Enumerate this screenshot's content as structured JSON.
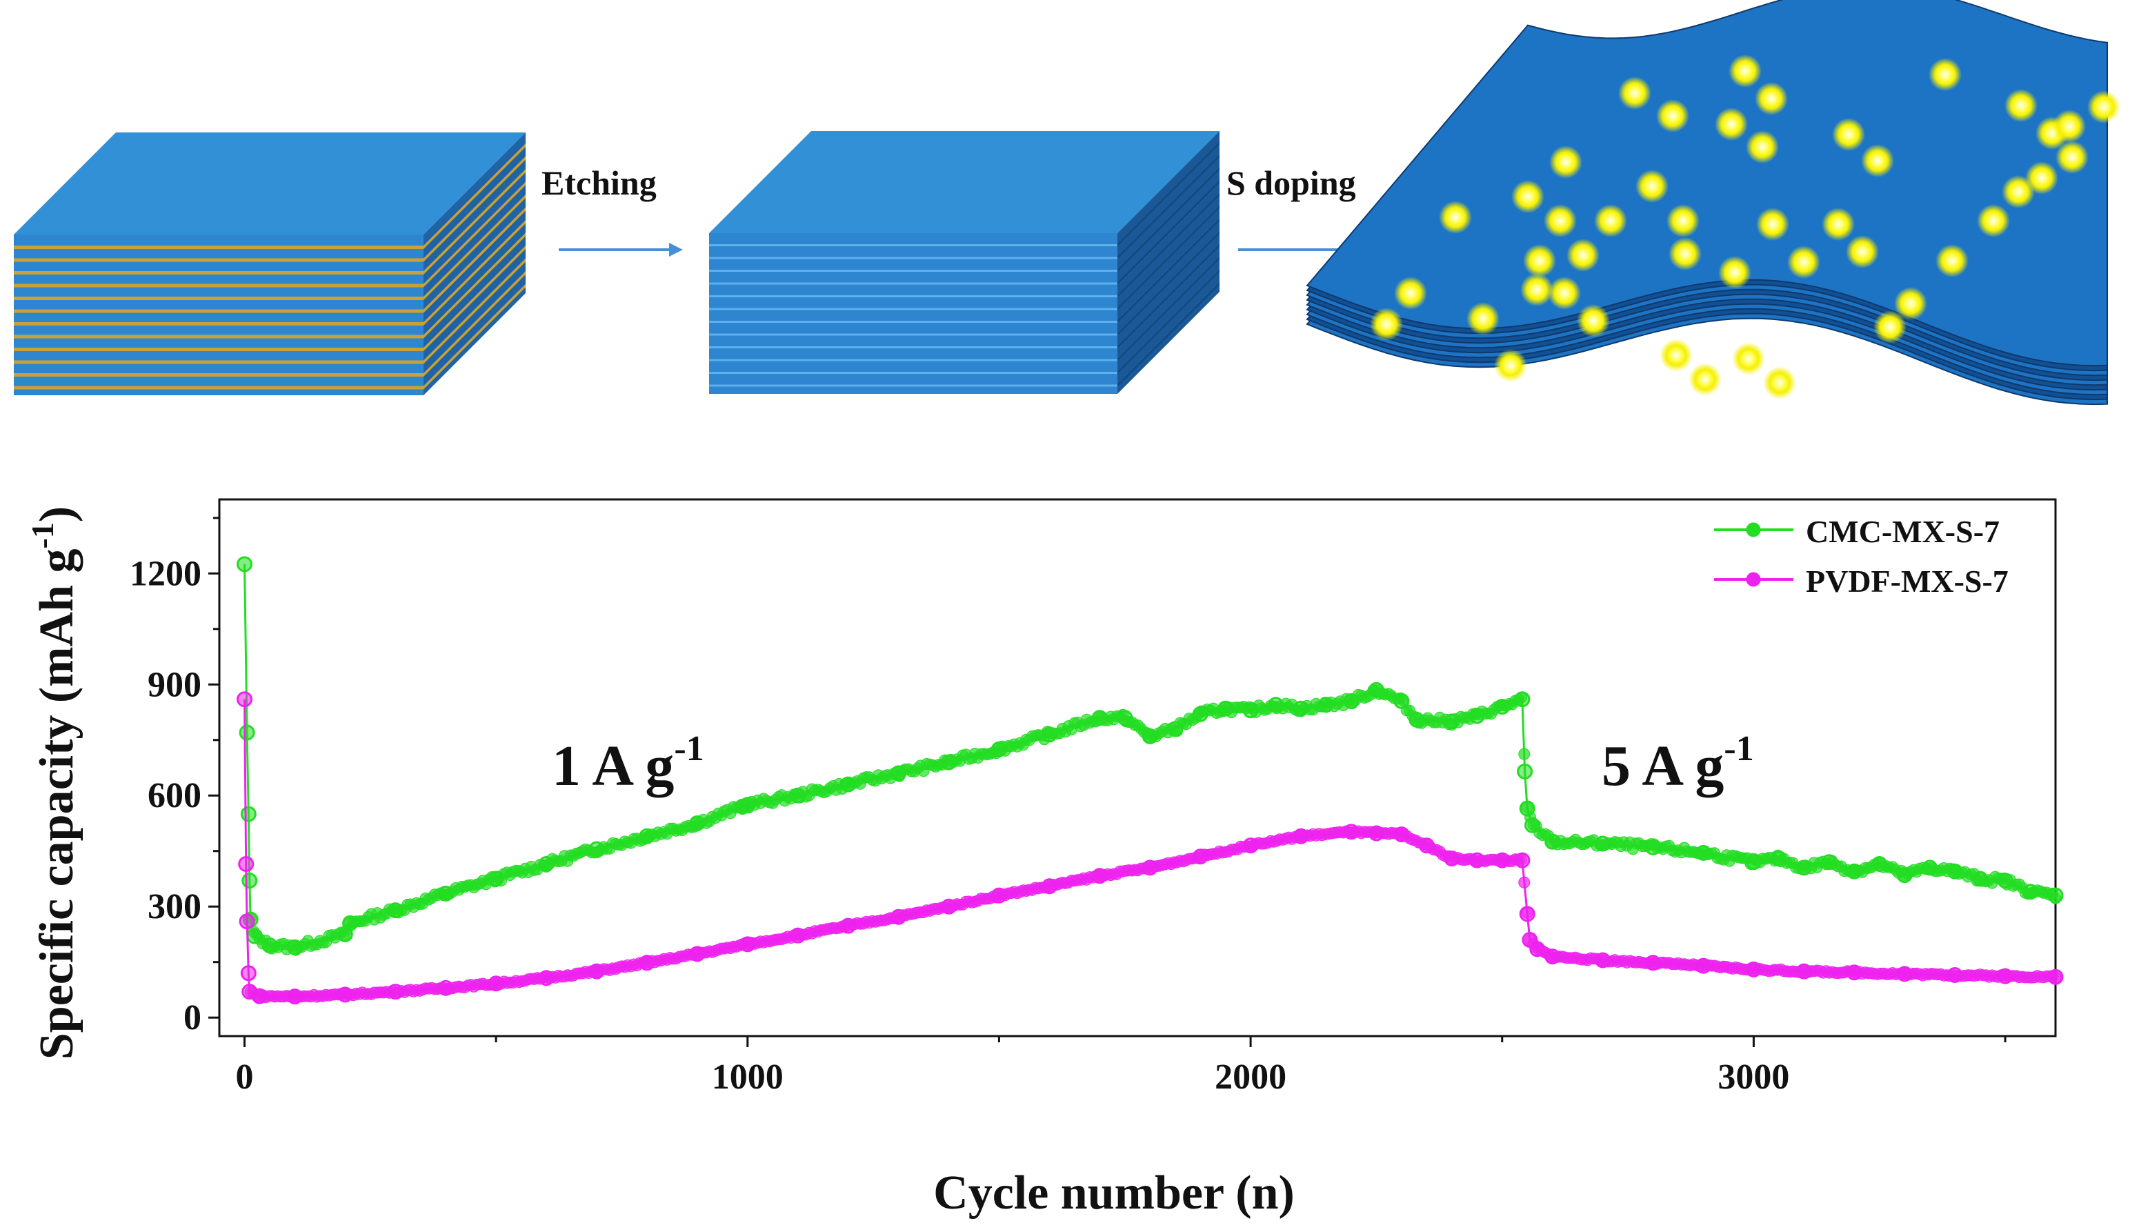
{
  "schematic": {
    "step1_label": "Etching",
    "step2_label": "S doping",
    "colors": {
      "layer_blue": "#2e86d0",
      "layer_blue_top": "#3291d6",
      "layer_blue_dark": "#1f63a6",
      "interlayer_gold": "#c9a135",
      "arrow_blue": "#4a8fd6",
      "dot_yellow": "#ffff33",
      "wave_blue": "#1e74c4"
    }
  },
  "chart_data": {
    "type": "scatter",
    "title": "",
    "xlabel": "Cycle number (n)",
    "ylabel": "Specific capacity (mAh g",
    "ylabel_sup": "-1",
    "ylabel_close": ")",
    "xlim": [
      -50,
      3600
    ],
    "ylim": [
      -50,
      1400
    ],
    "xticks": [
      0,
      1000,
      2000,
      3000
    ],
    "xtick_labels": [
      "0",
      "1000",
      "2000",
      "3000"
    ],
    "yticks": [
      0,
      300,
      600,
      900,
      1200
    ],
    "ytick_labels": [
      "0",
      "300",
      "600",
      "900",
      "1200"
    ],
    "legend_position": "top-right",
    "annotations": [
      {
        "text": "1 A g",
        "sup": "-1",
        "x": 600,
        "y": 720
      },
      {
        "text": "5 A g",
        "sup": "-1",
        "x": 2920,
        "y": 720
      }
    ],
    "series": [
      {
        "name": "CMC-MX-S-7",
        "color": "#22dd22",
        "points": [
          [
            0,
            1225
          ],
          [
            5,
            770
          ],
          [
            8,
            550
          ],
          [
            10,
            370
          ],
          [
            12,
            265
          ],
          [
            20,
            220
          ],
          [
            50,
            195
          ],
          [
            100,
            190
          ],
          [
            200,
            225
          ],
          [
            210,
            255
          ],
          [
            300,
            290
          ],
          [
            400,
            335
          ],
          [
            500,
            375
          ],
          [
            600,
            415
          ],
          [
            700,
            455
          ],
          [
            800,
            490
          ],
          [
            900,
            525
          ],
          [
            990,
            570
          ],
          [
            1000,
            575
          ],
          [
            1100,
            600
          ],
          [
            1200,
            630
          ],
          [
            1300,
            660
          ],
          [
            1400,
            690
          ],
          [
            1500,
            725
          ],
          [
            1600,
            765
          ],
          [
            1700,
            810
          ],
          [
            1750,
            810
          ],
          [
            1800,
            760
          ],
          [
            1850,
            780
          ],
          [
            1900,
            820
          ],
          [
            1950,
            835
          ],
          [
            2000,
            830
          ],
          [
            2050,
            845
          ],
          [
            2100,
            835
          ],
          [
            2150,
            845
          ],
          [
            2200,
            855
          ],
          [
            2250,
            885
          ],
          [
            2300,
            855
          ],
          [
            2330,
            805
          ],
          [
            2400,
            800
          ],
          [
            2450,
            815
          ],
          [
            2500,
            840
          ],
          [
            2540,
            860
          ],
          [
            2545,
            665
          ],
          [
            2550,
            565
          ],
          [
            2560,
            520
          ],
          [
            2600,
            475
          ],
          [
            2700,
            470
          ],
          [
            2800,
            460
          ],
          [
            2900,
            445
          ],
          [
            3000,
            420
          ],
          [
            3050,
            430
          ],
          [
            3100,
            405
          ],
          [
            3150,
            420
          ],
          [
            3200,
            395
          ],
          [
            3250,
            415
          ],
          [
            3300,
            385
          ],
          [
            3350,
            405
          ],
          [
            3400,
            395
          ],
          [
            3450,
            375
          ],
          [
            3500,
            370
          ],
          [
            3550,
            340
          ],
          [
            3600,
            330
          ]
        ]
      },
      {
        "name": "PVDF-MX-S-7",
        "color": "#ee22ee",
        "points": [
          [
            0,
            860
          ],
          [
            3,
            415
          ],
          [
            5,
            260
          ],
          [
            8,
            120
          ],
          [
            10,
            70
          ],
          [
            30,
            58
          ],
          [
            100,
            57
          ],
          [
            200,
            62
          ],
          [
            300,
            70
          ],
          [
            400,
            80
          ],
          [
            500,
            92
          ],
          [
            600,
            107
          ],
          [
            700,
            125
          ],
          [
            800,
            148
          ],
          [
            900,
            172
          ],
          [
            1000,
            198
          ],
          [
            1100,
            222
          ],
          [
            1200,
            248
          ],
          [
            1300,
            272
          ],
          [
            1400,
            300
          ],
          [
            1500,
            330
          ],
          [
            1600,
            355
          ],
          [
            1700,
            383
          ],
          [
            1800,
            405
          ],
          [
            1900,
            435
          ],
          [
            2000,
            465
          ],
          [
            2100,
            490
          ],
          [
            2200,
            502
          ],
          [
            2250,
            498
          ],
          [
            2300,
            495
          ],
          [
            2350,
            465
          ],
          [
            2400,
            430
          ],
          [
            2450,
            425
          ],
          [
            2500,
            425
          ],
          [
            2540,
            425
          ],
          [
            2550,
            280
          ],
          [
            2555,
            210
          ],
          [
            2570,
            185
          ],
          [
            2600,
            165
          ],
          [
            2700,
            155
          ],
          [
            2800,
            148
          ],
          [
            2900,
            140
          ],
          [
            3000,
            130
          ],
          [
            3100,
            125
          ],
          [
            3200,
            122
          ],
          [
            3300,
            118
          ],
          [
            3400,
            115
          ],
          [
            3500,
            112
          ],
          [
            3600,
            110
          ]
        ]
      }
    ]
  }
}
